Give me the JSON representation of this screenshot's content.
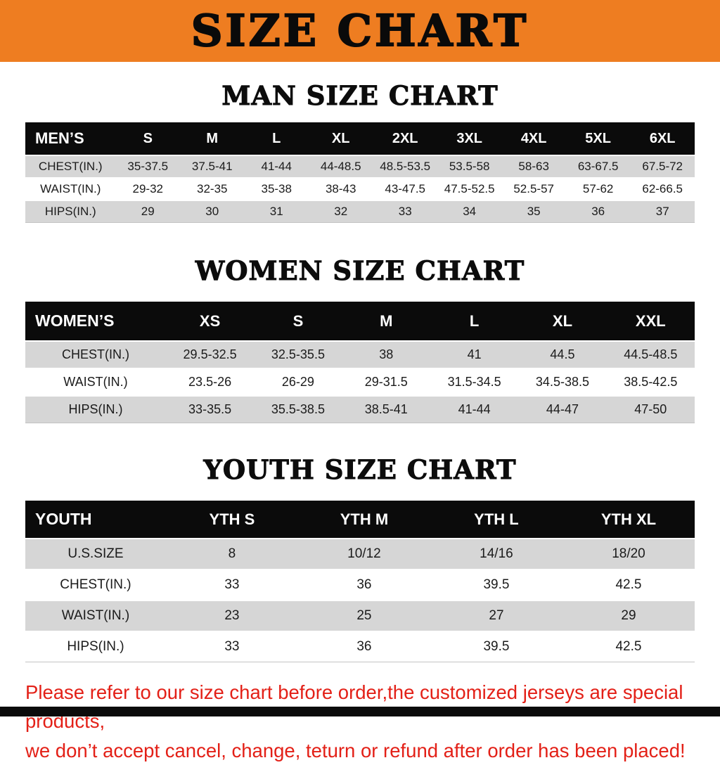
{
  "colors": {
    "banner_bg": "#ee7d21",
    "header_bg": "#0b0b0b",
    "stripe": "#d6d6d6",
    "footer_red": "#e32017"
  },
  "banner": {
    "title": "SIZE CHART"
  },
  "sections": [
    {
      "heading": "MAN SIZE CHART",
      "table": {
        "header": [
          "MEN’S",
          "S",
          "M",
          "L",
          "XL",
          "2XL",
          "3XL",
          "4XL",
          "5XL",
          "6XL"
        ],
        "rows": [
          [
            "CHEST(IN.)",
            "35-37.5",
            "37.5-41",
            "41-44",
            "44-48.5",
            "48.5-53.5",
            "53.5-58",
            "58-63",
            "63-67.5",
            "67.5-72"
          ],
          [
            "WAIST(IN.)",
            "29-32",
            "32-35",
            "35-38",
            "38-43",
            "43-47.5",
            "47.5-52.5",
            "52.5-57",
            "57-62",
            "62-66.5"
          ],
          [
            "HIPS(IN.)",
            "29",
            "30",
            "31",
            "32",
            "33",
            "34",
            "35",
            "36",
            "37"
          ]
        ]
      }
    },
    {
      "heading": "WOMEN SIZE CHART",
      "table": {
        "header": [
          "WOMEN’S",
          "XS",
          "S",
          "M",
          "L",
          "XL",
          "XXL"
        ],
        "rows": [
          [
            "CHEST(IN.)",
            "29.5-32.5",
            "32.5-35.5",
            "38",
            "41",
            "44.5",
            "44.5-48.5"
          ],
          [
            "WAIST(IN.)",
            "23.5-26",
            "26-29",
            "29-31.5",
            "31.5-34.5",
            "34.5-38.5",
            "38.5-42.5"
          ],
          [
            "HIPS(IN.)",
            "33-35.5",
            "35.5-38.5",
            "38.5-41",
            "41-44",
            "44-47",
            "47-50"
          ]
        ]
      }
    },
    {
      "heading": "YOUTH SIZE CHART",
      "table": {
        "header": [
          "YOUTH",
          "YTH S",
          "YTH M",
          "YTH L",
          "YTH XL"
        ],
        "rows": [
          [
            "U.S.SIZE",
            "8",
            "10/12",
            "14/16",
            "18/20"
          ],
          [
            "CHEST(IN.)",
            "33",
            "36",
            "39.5",
            "42.5"
          ],
          [
            "WAIST(IN.)",
            "23",
            "25",
            "27",
            "29"
          ],
          [
            "HIPS(IN.)",
            "33",
            "36",
            "39.5",
            "42.5"
          ]
        ]
      }
    }
  ],
  "footer": {
    "lines": [
      "Please refer to our size chart before order,the customized jerseys are special products,",
      "we don’t accept cancel, change, teturn or refund after order has been placed!"
    ]
  }
}
